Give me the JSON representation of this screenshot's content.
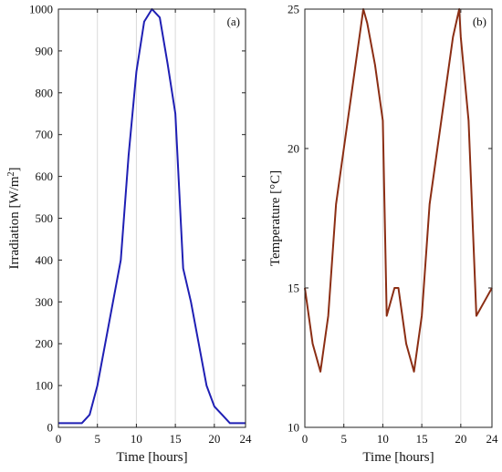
{
  "chart_data": [
    {
      "type": "line",
      "panel_label": "(a)",
      "xlabel": "Time [hours]",
      "ylabel": "Irradiation [W/m",
      "ylabel_sup": "2",
      "ylabel_end": "]",
      "xlim": [
        0,
        24
      ],
      "ylim": [
        0,
        1000
      ],
      "xticks": [
        0,
        5,
        10,
        15,
        20,
        24
      ],
      "yticks": [
        0,
        100,
        200,
        300,
        400,
        500,
        600,
        700,
        800,
        900,
        1000
      ],
      "grid": "vertical",
      "color": "#1f1fb4",
      "series": [
        {
          "x": [
            0,
            1,
            2,
            3,
            4,
            5,
            6,
            7,
            8,
            9,
            10,
            11,
            12,
            13,
            14,
            15,
            16,
            17,
            18,
            19,
            20,
            21,
            22,
            23,
            24
          ],
          "y": [
            10,
            10,
            10,
            10,
            30,
            100,
            200,
            300,
            400,
            650,
            850,
            970,
            1000,
            980,
            870,
            750,
            380,
            300,
            200,
            100,
            50,
            30,
            10,
            10,
            10
          ]
        }
      ]
    },
    {
      "type": "line",
      "panel_label": "(b)",
      "xlabel": "Time [hours]",
      "ylabel": "Temperature [°C]",
      "xlim": [
        0,
        24
      ],
      "ylim": [
        10,
        25
      ],
      "xticks": [
        0,
        5,
        10,
        15,
        20,
        24
      ],
      "yticks": [
        10,
        15,
        20,
        25
      ],
      "grid": "vertical",
      "color": "#8b2e14",
      "series": [
        {
          "x": [
            0,
            1,
            2,
            3,
            4,
            5,
            6,
            7,
            7.5,
            8,
            9,
            10,
            10.5,
            11,
            11.5,
            12,
            13,
            14,
            15,
            16,
            17,
            18,
            19,
            19.8,
            20,
            21,
            22,
            23,
            24
          ],
          "y": [
            15,
            13,
            12,
            14,
            18,
            20,
            22,
            24,
            25,
            24.5,
            23,
            21,
            14,
            14.5,
            15,
            15,
            13,
            12,
            14,
            18,
            20,
            22,
            24,
            25,
            24,
            21,
            14,
            14.5,
            15
          ]
        }
      ]
    }
  ]
}
